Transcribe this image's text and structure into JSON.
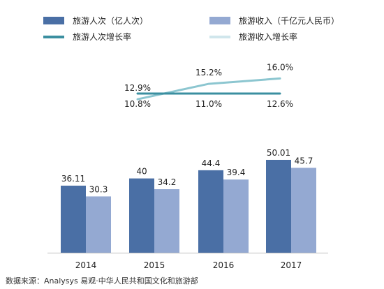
{
  "chart_data": {
    "type": "bar",
    "categories": [
      "2014",
      "2015",
      "2016",
      "2017"
    ],
    "series": [
      {
        "name": "旅游人次（亿人次）",
        "values": [
          36.11,
          40,
          44.4,
          50.01
        ],
        "color": "#4a6fa5"
      },
      {
        "name": "旅游收入（千亿元人民币）",
        "values": [
          30.3,
          34.2,
          39.4,
          45.7
        ],
        "color": "#94a9d2"
      }
    ],
    "growth_series": [
      {
        "name": "旅游人次增长率",
        "values": [
          10.8,
          11.0,
          12.6
        ],
        "labels": [
          "10.8%",
          "11.0%",
          "12.6%"
        ],
        "color": "#3b8fa0"
      },
      {
        "name": "旅游收入增长率",
        "values": [
          12.9,
          15.2,
          16.0
        ],
        "labels": [
          "12.9%",
          "15.2%",
          "16.0%"
        ],
        "color": "#8cc6d0"
      }
    ],
    "ylim": [
      0,
      60
    ],
    "grid": false,
    "legend": "top",
    "source": "数据来源：Analysys 易观·中华人民共和国文化和旅游部"
  }
}
